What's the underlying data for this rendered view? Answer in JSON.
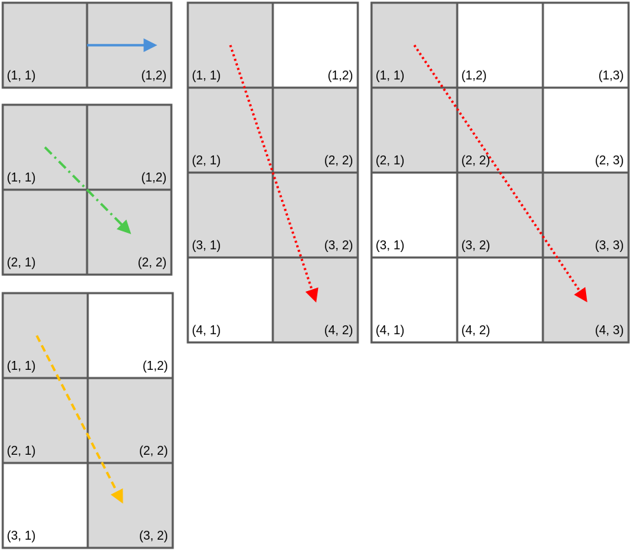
{
  "colors": {
    "shaded": "#d9d9d9",
    "empty": "#ffffff",
    "grid_line": "#595959",
    "blue_arrow": "#4a90d9",
    "green_arrow": "#4cc94c",
    "yellow_arrow": "#ffbf00",
    "red_arrow": "#ff0000"
  },
  "grids": [
    {
      "id": "grid-1x2",
      "rows": 1,
      "cols": 2,
      "cells": [
        {
          "r": 1,
          "c": 1,
          "label": "(1, 1)",
          "shaded": true
        },
        {
          "r": 1,
          "c": 2,
          "label": "(1,2)",
          "shaded": true
        }
      ],
      "arrow": {
        "color": "blue_arrow",
        "style": "solid",
        "from": [
          1.0,
          0.5
        ],
        "to": [
          1.8,
          0.5
        ]
      }
    },
    {
      "id": "grid-2x2",
      "rows": 2,
      "cols": 2,
      "cells": [
        {
          "r": 1,
          "c": 1,
          "label": "(1, 1)",
          "shaded": true
        },
        {
          "r": 1,
          "c": 2,
          "label": "(1,2)",
          "shaded": true
        },
        {
          "r": 2,
          "c": 1,
          "label": "(2, 1)",
          "shaded": true
        },
        {
          "r": 2,
          "c": 2,
          "label": "(2, 2)",
          "shaded": true
        }
      ],
      "arrow": {
        "color": "green_arrow",
        "style": "dashdot",
        "from": [
          0.5,
          0.5
        ],
        "to": [
          1.5,
          1.5
        ]
      }
    },
    {
      "id": "grid-3x2",
      "rows": 3,
      "cols": 2,
      "cells": [
        {
          "r": 1,
          "c": 1,
          "label": "(1, 1)",
          "shaded": true
        },
        {
          "r": 1,
          "c": 2,
          "label": "(1,2)",
          "shaded": false
        },
        {
          "r": 2,
          "c": 1,
          "label": "(2, 1)",
          "shaded": true
        },
        {
          "r": 2,
          "c": 2,
          "label": "(2, 2)",
          "shaded": true
        },
        {
          "r": 3,
          "c": 1,
          "label": "(3, 1)",
          "shaded": false
        },
        {
          "r": 3,
          "c": 2,
          "label": "(3, 2)",
          "shaded": true
        }
      ],
      "arrow": {
        "color": "yellow_arrow",
        "style": "dashed",
        "from": [
          0.4,
          0.5
        ],
        "to": [
          1.4,
          2.45
        ]
      }
    },
    {
      "id": "grid-4x2",
      "rows": 4,
      "cols": 2,
      "cells": [
        {
          "r": 1,
          "c": 1,
          "label": "(1, 1)",
          "shaded": true
        },
        {
          "r": 1,
          "c": 2,
          "label": "(1,2)",
          "shaded": false
        },
        {
          "r": 2,
          "c": 1,
          "label": "(2, 1)",
          "shaded": true
        },
        {
          "r": 2,
          "c": 2,
          "label": "(2, 2)",
          "shaded": true
        },
        {
          "r": 3,
          "c": 1,
          "label": "(3, 1)",
          "shaded": true
        },
        {
          "r": 3,
          "c": 2,
          "label": "(3, 2)",
          "shaded": true
        },
        {
          "r": 4,
          "c": 1,
          "label": "(4, 1)",
          "shaded": false
        },
        {
          "r": 4,
          "c": 2,
          "label": "(4, 2)",
          "shaded": true
        }
      ],
      "arrow": {
        "color": "red_arrow",
        "style": "dotted",
        "from": [
          0.5,
          0.5
        ],
        "to": [
          1.5,
          3.5
        ]
      }
    },
    {
      "id": "grid-4x3",
      "rows": 4,
      "cols": 3,
      "cells": [
        {
          "r": 1,
          "c": 1,
          "label": "(1, 1)",
          "shaded": true
        },
        {
          "r": 1,
          "c": 2,
          "label": "(1,2)",
          "shaded": false
        },
        {
          "r": 1,
          "c": 3,
          "label": "(1,3)",
          "shaded": false
        },
        {
          "r": 2,
          "c": 1,
          "label": "(2, 1)",
          "shaded": true
        },
        {
          "r": 2,
          "c": 2,
          "label": "(2, 2)",
          "shaded": true
        },
        {
          "r": 2,
          "c": 3,
          "label": "(2, 3)",
          "shaded": false
        },
        {
          "r": 3,
          "c": 1,
          "label": "(3, 1)",
          "shaded": false
        },
        {
          "r": 3,
          "c": 2,
          "label": "(3, 2)",
          "shaded": true
        },
        {
          "r": 3,
          "c": 3,
          "label": "(3, 3)",
          "shaded": true
        },
        {
          "r": 4,
          "c": 1,
          "label": "(4, 1)",
          "shaded": false
        },
        {
          "r": 4,
          "c": 2,
          "label": "(4, 2)",
          "shaded": false
        },
        {
          "r": 4,
          "c": 3,
          "label": "(4, 3)",
          "shaded": true
        }
      ],
      "arrow": {
        "color": "red_arrow",
        "style": "dotted",
        "from": [
          0.5,
          0.5
        ],
        "to": [
          2.5,
          3.5
        ]
      }
    }
  ]
}
